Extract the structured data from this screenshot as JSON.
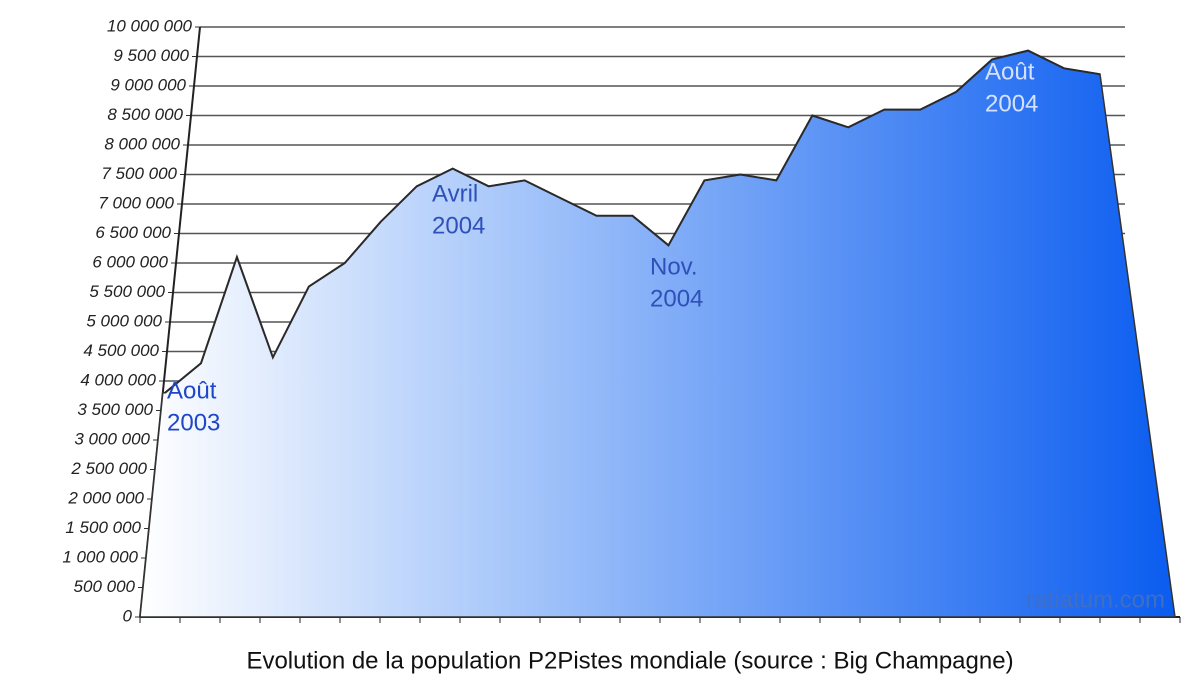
{
  "chart_data": {
    "type": "area",
    "title": "Evolution de la population P2Pistes mondiale (source : Big Champagne)",
    "watermark": "ratiatum.com",
    "values": [
      3800000,
      4300000,
      6100000,
      4400000,
      5600000,
      6000000,
      6700000,
      7300000,
      7600000,
      7300000,
      7400000,
      7100000,
      6800000,
      6800000,
      6300000,
      7400000,
      7500000,
      7400000,
      8500000,
      8300000,
      8600000,
      8600000,
      8900000,
      9450000,
      9600000,
      9300000,
      9200000
    ],
    "color": "#0a5cf0",
    "ylim": [
      0,
      10000000
    ],
    "yticks": [
      {
        "value": 0,
        "label": "0"
      },
      {
        "value": 500000,
        "label": "500 000"
      },
      {
        "value": 1000000,
        "label": "1 000 000"
      },
      {
        "value": 1500000,
        "label": "1 500 000"
      },
      {
        "value": 2000000,
        "label": "2 000 000"
      },
      {
        "value": 2500000,
        "label": "2 500 000"
      },
      {
        "value": 3000000,
        "label": "3 000 000"
      },
      {
        "value": 3500000,
        "label": "3 500 000"
      },
      {
        "value": 4000000,
        "label": "4 000 000"
      },
      {
        "value": 4500000,
        "label": "4 500 000"
      },
      {
        "value": 5000000,
        "label": "5 000 000"
      },
      {
        "value": 5500000,
        "label": "5 500 000"
      },
      {
        "value": 6000000,
        "label": "6 000 000"
      },
      {
        "value": 6500000,
        "label": "6 500 000"
      },
      {
        "value": 7000000,
        "label": "7 000 000"
      },
      {
        "value": 7500000,
        "label": "7 500 000"
      },
      {
        "value": 8000000,
        "label": "8 000 000"
      },
      {
        "value": 8500000,
        "label": "8 500 000"
      },
      {
        "value": 9000000,
        "label": "9 000 000"
      },
      {
        "value": 9500000,
        "label": "9 500 000"
      },
      {
        "value": 10000000,
        "label": "10 000 000"
      }
    ],
    "grid": true,
    "annotations": [
      {
        "lines": [
          "Août",
          "2003"
        ]
      },
      {
        "lines": [
          "Avril",
          "2004"
        ]
      },
      {
        "lines": [
          "Nov.",
          "2004"
        ]
      },
      {
        "lines": [
          "Août",
          "2004"
        ]
      }
    ]
  }
}
